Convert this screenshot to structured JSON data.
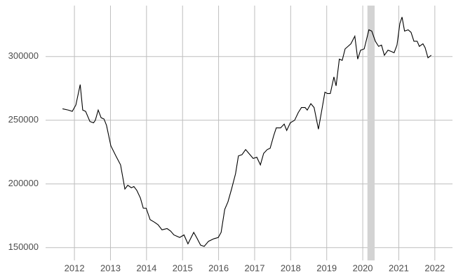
{
  "chart_data": {
    "type": "line",
    "x": [
      2011.67,
      2011.83,
      2011.94,
      2012.04,
      2012.16,
      2012.23,
      2012.31,
      2012.43,
      2012.53,
      2012.58,
      2012.66,
      2012.74,
      2012.82,
      2012.89,
      2013.01,
      2013.15,
      2013.28,
      2013.4,
      2013.48,
      2013.58,
      2013.65,
      2013.73,
      2013.83,
      2013.91,
      2013.99,
      2014.1,
      2014.22,
      2014.32,
      2014.43,
      2014.57,
      2014.67,
      2014.76,
      2014.92,
      2015.04,
      2015.15,
      2015.31,
      2015.39,
      2015.5,
      2015.6,
      2015.72,
      2015.87,
      2015.99,
      2016.07,
      2016.17,
      2016.26,
      2016.36,
      2016.47,
      2016.55,
      2016.65,
      2016.75,
      2016.84,
      2016.96,
      2017.06,
      2017.16,
      2017.25,
      2017.35,
      2017.43,
      2017.53,
      2017.6,
      2017.72,
      2017.82,
      2017.89,
      2017.99,
      2018.11,
      2018.21,
      2018.3,
      2018.4,
      2018.46,
      2018.56,
      2018.65,
      2018.77,
      2018.87,
      2018.95,
      2019.02,
      2019.1,
      2019.2,
      2019.26,
      2019.35,
      2019.43,
      2019.51,
      2019.59,
      2019.67,
      2019.78,
      2019.86,
      2019.94,
      2020.04,
      2020.11,
      2020.17,
      2020.25,
      2020.35,
      2020.44,
      2020.52,
      2020.6,
      2020.7,
      2020.79,
      2020.87,
      2020.95,
      2021.03,
      2021.09,
      2021.16,
      2021.26,
      2021.34,
      2021.42,
      2021.51,
      2021.57,
      2021.67,
      2021.73,
      2021.81,
      2021.9
    ],
    "values": [
      259000,
      258000,
      257000,
      262000,
      278000,
      258000,
      257000,
      249000,
      248000,
      250000,
      258000,
      252000,
      251000,
      246000,
      230000,
      222000,
      215000,
      196000,
      199000,
      197000,
      198000,
      195000,
      189000,
      181000,
      181000,
      172000,
      170000,
      168000,
      164000,
      165000,
      163000,
      160000,
      158000,
      160000,
      153000,
      162000,
      158000,
      152000,
      151000,
      155000,
      157000,
      158000,
      162000,
      180000,
      186000,
      196000,
      208000,
      222000,
      223000,
      227000,
      224000,
      220000,
      221000,
      215000,
      224000,
      227000,
      228000,
      238000,
      244000,
      244000,
      247000,
      242000,
      248000,
      250000,
      256000,
      260000,
      260000,
      258000,
      263000,
      260000,
      243000,
      259000,
      272000,
      271000,
      271000,
      284000,
      277000,
      298000,
      297000,
      306000,
      308000,
      310000,
      316000,
      298000,
      305000,
      306000,
      314000,
      321000,
      320000,
      312000,
      308000,
      309000,
      301000,
      305000,
      304000,
      303000,
      309000,
      326000,
      331000,
      320000,
      321000,
      319000,
      312000,
      312000,
      308000,
      310000,
      307000,
      299000,
      301000
    ],
    "color": "#000000",
    "xlim": [
      2011.2,
      2022.49
    ],
    "xticks": [
      2012,
      2013,
      2014,
      2015,
      2016,
      2017,
      2018,
      2019,
      2020,
      2021,
      2022
    ],
    "ylim": [
      140000,
      340000
    ],
    "yticks": [
      150000,
      200000,
      250000,
      300000
    ],
    "grid": true,
    "shaded_region": {
      "x": [
        2020.13,
        2020.33
      ],
      "color": "#d3d3d3"
    }
  }
}
